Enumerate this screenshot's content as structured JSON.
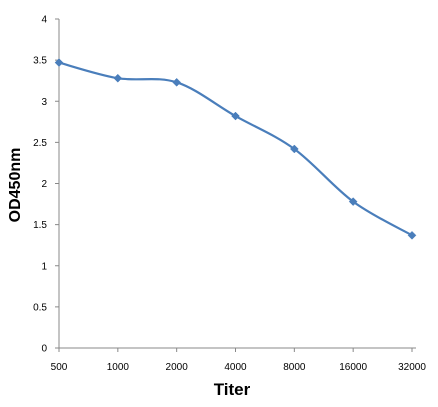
{
  "chart_data": {
    "type": "line",
    "title": "",
    "xlabel": "Titer",
    "ylabel": "OD450nm",
    "categories": [
      "500",
      "1000",
      "2000",
      "4000",
      "8000",
      "16000",
      "32000"
    ],
    "yticks": [
      "0",
      "0.5",
      "1",
      "1.5",
      "2",
      "2.5",
      "3",
      "3.5",
      "4"
    ],
    "ylim": [
      0,
      4
    ],
    "grid": false,
    "legend": "none",
    "series": [
      {
        "values": [
          3.47,
          3.28,
          3.23,
          2.82,
          2.42,
          1.78,
          1.37
        ],
        "color": "#4a7ebb",
        "marker": "diamond",
        "smooth": true
      }
    ],
    "axis_color": "#888888"
  }
}
